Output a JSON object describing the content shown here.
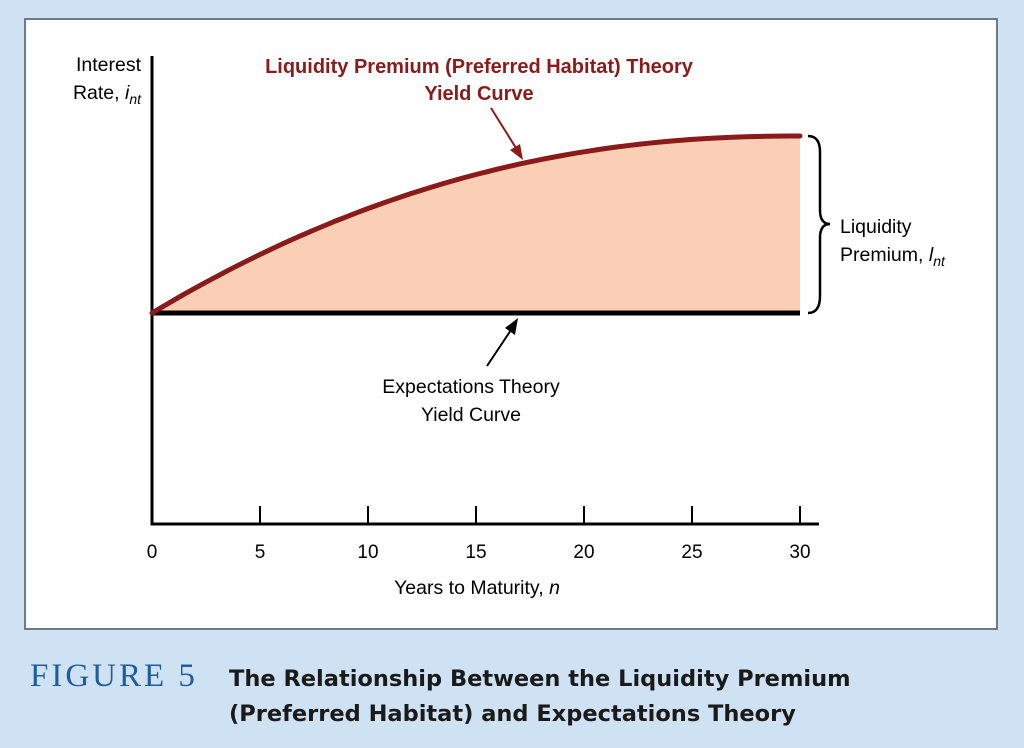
{
  "chart_data": {
    "type": "area",
    "title": "",
    "ylabel": "Interest Rate,",
    "ylabel_var": "i",
    "ylabel_sub": "nt",
    "xlabel": "Years to Maturity,",
    "xlabel_var": "n",
    "xticks": [
      0,
      5,
      10,
      15,
      20,
      25,
      30
    ],
    "xlim": [
      0,
      30
    ],
    "y_ticks_shown": false,
    "series": [
      {
        "name": "Liquidity Premium (Preferred Habitat) Theory Yield Curve",
        "label_lines": [
          "Liquidity Premium (Preferred Habitat) Theory",
          "Yield Curve"
        ],
        "color": "#8b1a1a",
        "fill": "#fbcfb6",
        "shape": "concave rising from the expectations theory curve, flattening toward 30 years",
        "x": [
          0,
          5,
          10,
          15,
          20,
          25,
          30
        ],
        "values": [
          0,
          0.36,
          0.6,
          0.76,
          0.88,
          0.96,
          1.0
        ]
      },
      {
        "name": "Expectations Theory Yield Curve",
        "label_lines": [
          "Expectations Theory",
          "Yield Curve"
        ],
        "color": "#000000",
        "shape": "flat",
        "x": [
          0,
          30
        ],
        "values": [
          0,
          0
        ]
      }
    ],
    "bracket_label": {
      "lines": [
        "Liquidity",
        "Premium,"
      ],
      "var": "l",
      "sub": "nt"
    },
    "y_scale_note": "values relative: 0 = expectations curve level, 1 = liquidity premium curve at 30 years"
  },
  "caption": {
    "figure": "FIGURE 5",
    "lines": [
      "The Relationship Between the Liquidity Premium",
      "(Preferred Habitat) and Expectations Theory"
    ]
  },
  "colors": {
    "background": "#cfe2f3",
    "figure_label": "#1f5e9c"
  }
}
